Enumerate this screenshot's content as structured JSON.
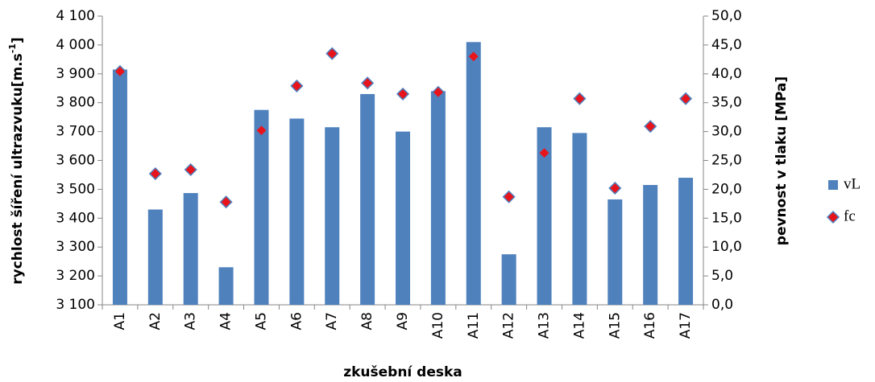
{
  "chart_data": {
    "type": "bar",
    "xlabel": "zkušební deska",
    "ylabel": {
      "text": "rychlost šíření ultrazvuku[m.s",
      "sup": "-1",
      "end": "]"
    },
    "y2label": "pevnost v tlaku [MPa]",
    "categories": [
      "A1",
      "A2",
      "A3",
      "A4",
      "A5",
      "A6",
      "A7",
      "A8",
      "A9",
      "A10",
      "A11",
      "A12",
      "A13",
      "A14",
      "A15",
      "A16",
      "A17"
    ],
    "series": [
      {
        "name": "vL",
        "type": "bar",
        "color": "#4f81bd",
        "axis": "y",
        "values": [
          3915,
          3430,
          3487,
          3230,
          3775,
          3745,
          3715,
          3830,
          3700,
          3840,
          4010,
          3275,
          3715,
          3695,
          3465,
          3515,
          3540
        ]
      },
      {
        "name": "fc",
        "type": "scatter",
        "color": "#e8141b",
        "axis": "y2",
        "values": [
          40.4,
          22.7,
          23.4,
          17.8,
          30.2,
          37.9,
          43.5,
          38.4,
          36.5,
          36.8,
          43.0,
          18.7,
          26.3,
          35.7,
          20.2,
          30.9,
          35.7
        ]
      }
    ],
    "ylim": [
      3100,
      4100
    ],
    "yticks": [
      {
        "value": 3100,
        "label": "3 100"
      },
      {
        "value": 3200,
        "label": "3 200"
      },
      {
        "value": 3300,
        "label": "3 300"
      },
      {
        "value": 3400,
        "label": "3 400"
      },
      {
        "value": 3500,
        "label": "3 500"
      },
      {
        "value": 3600,
        "label": "3 600"
      },
      {
        "value": 3700,
        "label": "3 700"
      },
      {
        "value": 3800,
        "label": "3 800"
      },
      {
        "value": 3900,
        "label": "3 900"
      },
      {
        "value": 4000,
        "label": "4 000"
      },
      {
        "value": 4100,
        "label": "4 100"
      }
    ],
    "y2lim": [
      0,
      50
    ],
    "y2ticks": [
      {
        "value": 0,
        "label": "0,0"
      },
      {
        "value": 5,
        "label": "5,0"
      },
      {
        "value": 10,
        "label": "10,0"
      },
      {
        "value": 15,
        "label": "15,0"
      },
      {
        "value": 20,
        "label": "20,0"
      },
      {
        "value": 25,
        "label": "25,0"
      },
      {
        "value": 30,
        "label": "30,0"
      },
      {
        "value": 35,
        "label": "35,0"
      },
      {
        "value": 40,
        "label": "40,0"
      },
      {
        "value": 45,
        "label": "45,0"
      },
      {
        "value": 50,
        "label": "50,0"
      }
    ],
    "legend": "right"
  }
}
